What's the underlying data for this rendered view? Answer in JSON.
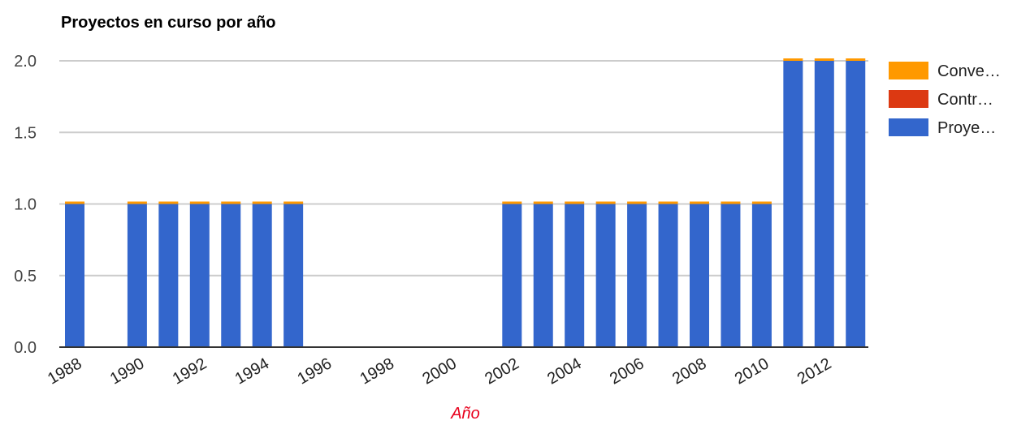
{
  "chart_data": {
    "type": "bar",
    "stacked": true,
    "title": "Proyectos en curso por año",
    "xlabel": "Año",
    "ylabel": "",
    "ylim": [
      0,
      2
    ],
    "yticks": [
      "0.0",
      "0.5",
      "1.0",
      "1.5",
      "2.0"
    ],
    "grid": true,
    "legend_position": "right",
    "categories": [
      1988,
      1989,
      1990,
      1991,
      1992,
      1993,
      1994,
      1995,
      1996,
      1997,
      1998,
      1999,
      2000,
      2001,
      2002,
      2003,
      2004,
      2005,
      2006,
      2007,
      2008,
      2009,
      2010,
      2011,
      2012,
      2013
    ],
    "xtick_labels": [
      "1988",
      "1990",
      "1992",
      "1994",
      "1996",
      "1998",
      "2000",
      "2002",
      "2004",
      "2006",
      "2008",
      "2010",
      "2012"
    ],
    "series": [
      {
        "name": "Proye…",
        "color": "#3366cc",
        "values": [
          1,
          0,
          1,
          1,
          1,
          1,
          1,
          1,
          0,
          0,
          0,
          0,
          0,
          0,
          1,
          1,
          1,
          1,
          1,
          1,
          1,
          1,
          1,
          2,
          2,
          2
        ]
      },
      {
        "name": "Contr…",
        "color": "#dc3912",
        "values": [
          0,
          0,
          0,
          0,
          0,
          0,
          0,
          0,
          0,
          0,
          0,
          0,
          0,
          0,
          0,
          0,
          0,
          0,
          0,
          0,
          0,
          0,
          0,
          0,
          0,
          0
        ]
      },
      {
        "name": "Conve…",
        "color": "#ff9900",
        "values": [
          0,
          0,
          0,
          0,
          0,
          0,
          0,
          0,
          0,
          0,
          0,
          0,
          0,
          0,
          0,
          0,
          0,
          0,
          0,
          0,
          0,
          0,
          0,
          0,
          0,
          0
        ]
      }
    ],
    "legend_order": [
      "Conve…",
      "Contr…",
      "Proye…"
    ],
    "colors": {
      "grid": "#cccccc",
      "axis": "#333333",
      "xlabel": "#e8001c"
    }
  }
}
